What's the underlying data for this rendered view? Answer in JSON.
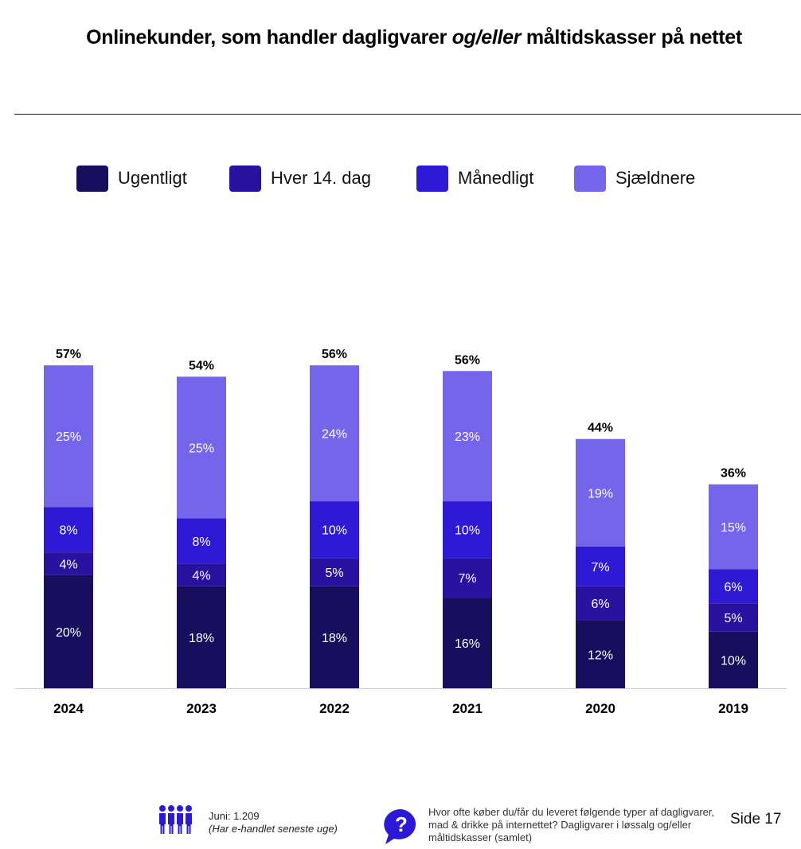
{
  "title": {
    "part1": "Onlinekunder, som handler dagligvarer ",
    "part2_italic": "og/eller",
    "part3": " måltidskasser på nettet"
  },
  "legend": [
    {
      "label": "Ugentligt",
      "color": "#170f5e"
    },
    {
      "label": "Hver 14. dag",
      "color": "#2a12a0"
    },
    {
      "label": "Månedligt",
      "color": "#2e19d4"
    },
    {
      "label": "Sjældnere",
      "color": "#7565ea"
    }
  ],
  "chart_data": {
    "type": "bar",
    "stacked": true,
    "categories": [
      "2024",
      "2023",
      "2022",
      "2021",
      "2020",
      "2019"
    ],
    "totals": [
      "57%",
      "54%",
      "56%",
      "56%",
      "44%",
      "36%"
    ],
    "series": [
      {
        "name": "Ugentligt",
        "values": [
          20,
          18,
          18,
          16,
          12,
          10
        ],
        "labels": [
          "20%",
          "18%",
          "18%",
          "16%",
          "12%",
          "10%"
        ],
        "color": "#170f5e"
      },
      {
        "name": "Hver 14. dag",
        "values": [
          4,
          4,
          5,
          7,
          6,
          5
        ],
        "labels": [
          "4%",
          "4%",
          "5%",
          "7%",
          "6%",
          "5%"
        ],
        "color": "#2a12a0"
      },
      {
        "name": "Månedligt",
        "values": [
          8,
          8,
          10,
          10,
          7,
          6
        ],
        "labels": [
          "8%",
          "8%",
          "10%",
          "10%",
          "7%",
          "6%"
        ],
        "color": "#2e19d4"
      },
      {
        "name": "Sjældnere",
        "values": [
          25,
          25,
          24,
          23,
          19,
          15
        ],
        "labels": [
          "25%",
          "25%",
          "24%",
          "23%",
          "19%",
          "15%"
        ],
        "color": "#7565ea"
      }
    ],
    "ylim": [
      0,
      57
    ],
    "grid": false,
    "legend_position": "top"
  },
  "footer": {
    "sample_line1": "Juni: 1.209",
    "sample_line2": "(Har e-handlet seneste uge)",
    "question": "Hvor ofte køber du/får du leveret følgende typer af dagligvarer, mad & drikke på internettet? Dagligvarer i løssalg og/eller måltidskasser (samlet)",
    "page": "Side 17",
    "people_icon": "people-icon",
    "question_icon": "question-bubble-icon",
    "icon_color": "#2a1ad8"
  }
}
